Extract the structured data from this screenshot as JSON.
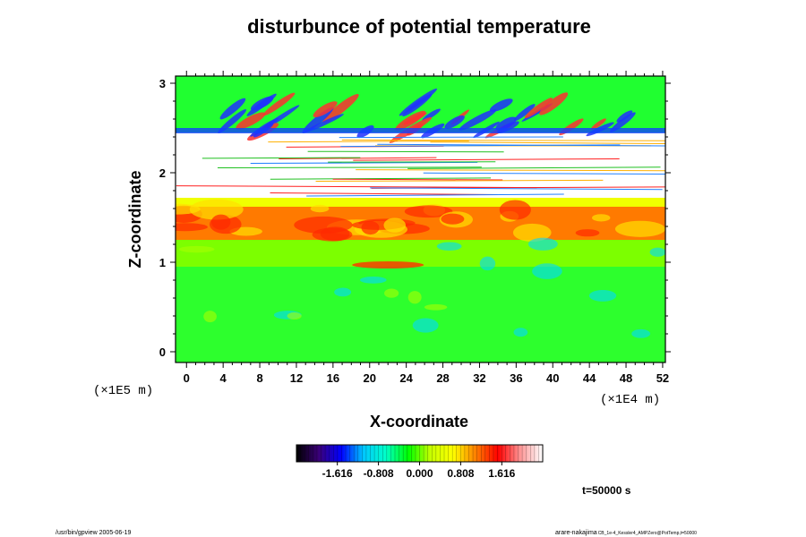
{
  "chart_data": {
    "type": "heatmap",
    "title": "disturbunce of potential temperature",
    "xlabel": "X-coordinate",
    "ylabel": "Z-coordinate",
    "x_unit": "(×1E4 m)",
    "y_unit": "(×1E5 m)",
    "xlim": [
      -1.2,
      52.3
    ],
    "ylim": [
      -0.12,
      3.08
    ],
    "x_ticks": [
      "0",
      "4",
      "8",
      "12",
      "16",
      "20",
      "24",
      "28",
      "32",
      "36",
      "40",
      "44",
      "48",
      "52"
    ],
    "x_tick_values": [
      0,
      4,
      8,
      12,
      16,
      20,
      24,
      28,
      32,
      36,
      40,
      44,
      48,
      52
    ],
    "y_ticks": [
      "0",
      "1",
      "2",
      "3"
    ],
    "y_tick_values": [
      0,
      1,
      2,
      3
    ],
    "colorbar": {
      "labels": [
        "-1.616",
        "-0.808",
        "0.000",
        "0.808",
        "1.616"
      ],
      "label_values": [
        -1.616,
        -0.808,
        0.0,
        0.808,
        1.616
      ],
      "range": [
        -2.42,
        2.42
      ],
      "colors": [
        "#000000",
        "#3a0078",
        "#0000ff",
        "#00c8ff",
        "#00ffc8",
        "#00ff00",
        "#c8ff00",
        "#ffff00",
        "#ff8000",
        "#ff0000",
        "#ff9696",
        "#ffffff"
      ]
    },
    "field": {
      "bands": [
        {
          "z_range": [
            -0.12,
            0.95
          ],
          "value": 0.0,
          "color": "#2dff2d"
        },
        {
          "z_range": [
            0.95,
            1.25
          ],
          "value": 0.4,
          "color": "#7cff00"
        },
        {
          "z_range": [
            1.25,
            1.62
          ],
          "value": 1.2,
          "color": "#ff7a00"
        },
        {
          "z_range": [
            1.62,
            1.72
          ],
          "value": 0.5,
          "color": "#f0ff00"
        },
        {
          "z_range": [
            1.72,
            2.45
          ],
          "value": 2.42,
          "color": "#ffffff"
        },
        {
          "z_range": [
            2.45,
            3.08
          ],
          "value": 0.0,
          "color": "#20ff30"
        }
      ]
    },
    "annotation": "t=50000 s"
  },
  "footer": {
    "left": "/usr/bin/gpview 2005-06-19",
    "right_main": "arare-nakajima",
    "right_sub": "CB_1e-4_Kessler4_AMPZero@PotTemp,t=50000"
  },
  "colors": {
    "frame": "#000000",
    "background": "#ffffff"
  }
}
